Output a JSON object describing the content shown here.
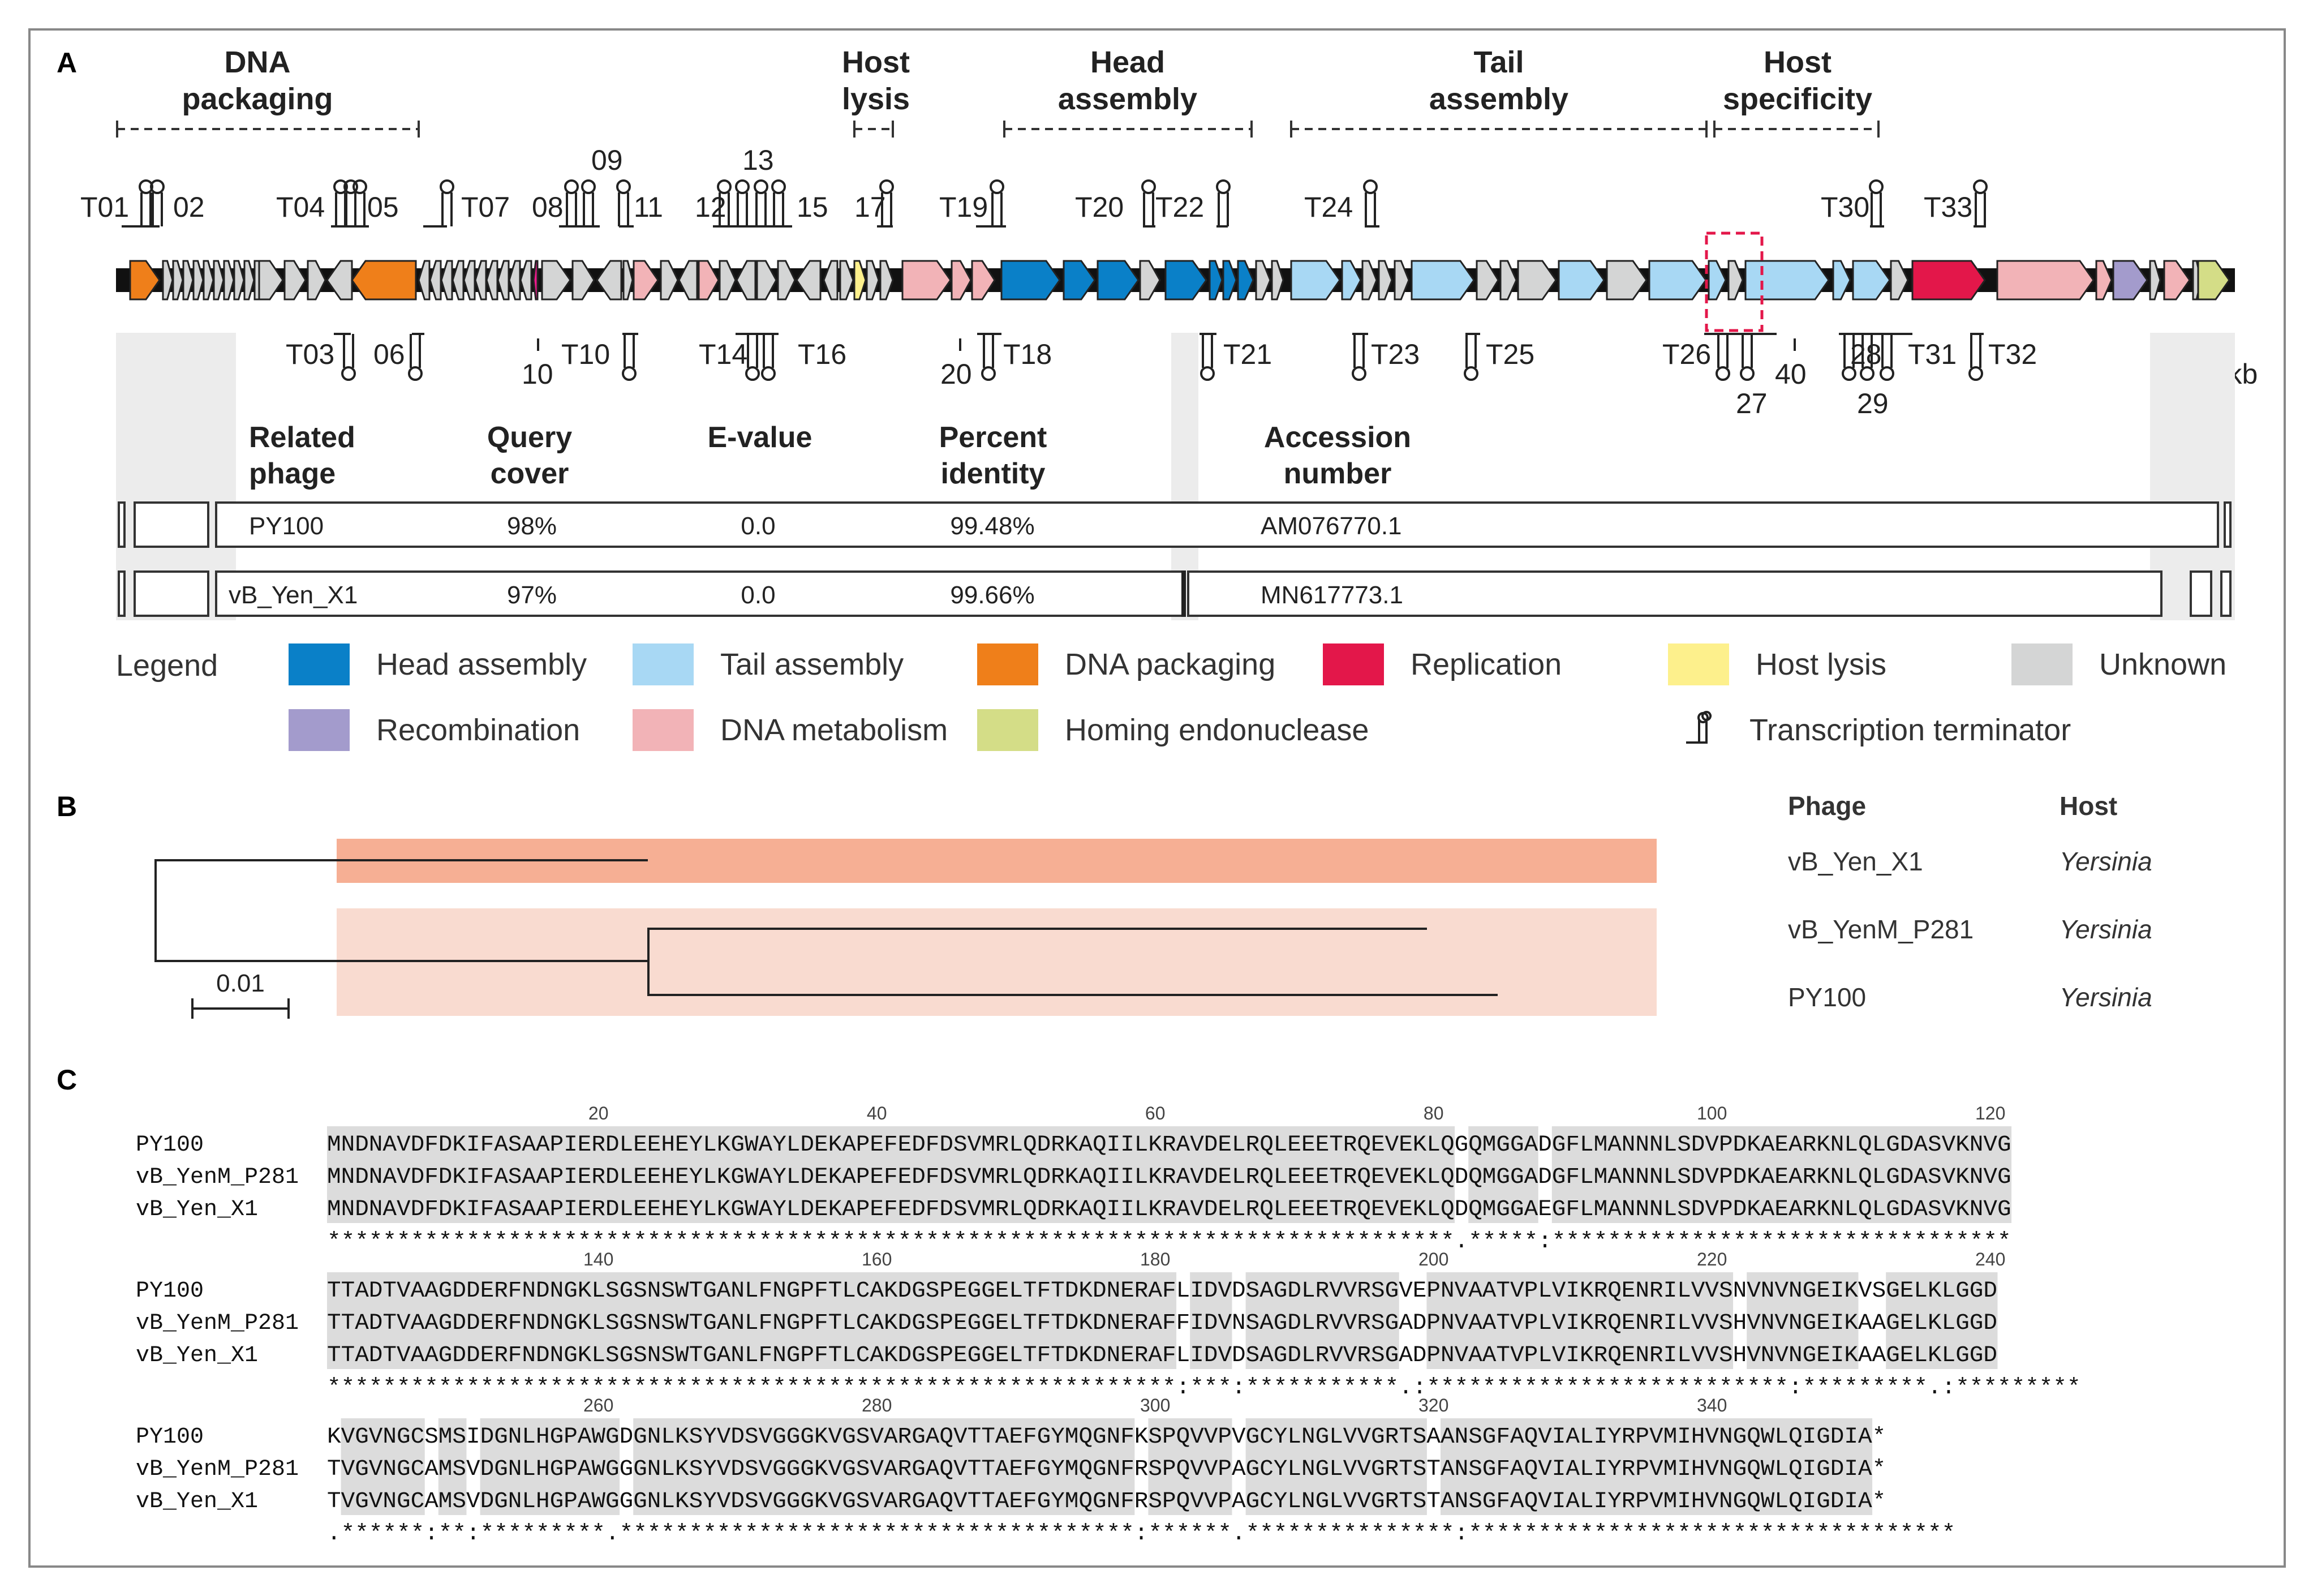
{
  "panels": {
    "a": "A",
    "b": "B",
    "c": "C"
  },
  "panel_a": {
    "modules": [
      {
        "line1": "DNA",
        "line2": "packaging"
      },
      {
        "line1": "Host",
        "line2": "lysis"
      },
      {
        "line1": "Head",
        "line2": "assembly"
      },
      {
        "line1": "Tail",
        "line2": "assembly"
      },
      {
        "line1": "Host",
        "line2": "specificity"
      }
    ],
    "terminators_top": [
      "T01",
      "02",
      "T04",
      "05",
      "T07",
      "08",
      "09",
      "11",
      "12",
      "13",
      "15",
      "17",
      "T19",
      "T20",
      "T22",
      "T24",
      "T30",
      "T33"
    ],
    "terminators_bottom": [
      "T03",
      "06",
      "T10",
      "T14",
      "T16",
      "T18",
      "T21",
      "T23",
      "T25",
      "T26",
      "27",
      "28",
      "29",
      "T31",
      "T32"
    ],
    "position_marks": [
      "10",
      "20",
      "40"
    ],
    "scale_label": "50 kb",
    "table_headers": [
      {
        "line1": "Related",
        "line2": "phage"
      },
      {
        "line1": "Query",
        "line2": "cover"
      },
      {
        "line1": "E-value",
        "line2": ""
      },
      {
        "line1": "Percent",
        "line2": "identity"
      },
      {
        "line1": "Accession",
        "line2": "number"
      }
    ],
    "rows": [
      {
        "phage": "PY100",
        "query_cover": "98%",
        "evalue": "0.0",
        "identity": "99.48%",
        "accession": "AM076770.1"
      },
      {
        "phage": "vB_Yen_X1",
        "query_cover": "97%",
        "evalue": "0.0",
        "identity": "99.66%",
        "accession": "MN617773.1"
      }
    ],
    "legend_title": "Legend",
    "legend": [
      {
        "label": "Head assembly",
        "color": "#0a80c8"
      },
      {
        "label": "Tail assembly",
        "color": "#a8d8f4"
      },
      {
        "label": "DNA packaging",
        "color": "#ef7f1a"
      },
      {
        "label": "Replication",
        "color": "#e3174a"
      },
      {
        "label": "Host lysis",
        "color": "#fdf08c"
      },
      {
        "label": "Unknown",
        "color": "#d4d5d5"
      },
      {
        "label": "Recombination",
        "color": "#a39bcc"
      },
      {
        "label": "DNA metabolism",
        "color": "#f2b3b7"
      },
      {
        "label": "Homing endonuclease",
        "color": "#d4dd87"
      }
    ],
    "terminator_legend": "Transcription terminator"
  },
  "panel_b": {
    "col_phage": "Phage",
    "col_host": "Host",
    "rows": [
      {
        "phage": "vB_Yen_X1",
        "host": "Yersinia"
      },
      {
        "phage": "vB_YenM_P281",
        "host": "Yersinia"
      },
      {
        "phage": "PY100",
        "host": "Yersinia"
      }
    ],
    "scale_bar": "0.01",
    "clade_colors": [
      "#f6af94",
      "#f9dbd0"
    ]
  },
  "panel_c": {
    "blocks": [
      {
        "ruler": [
          "20",
          "40",
          "60",
          "80",
          "100",
          "120"
        ],
        "seqs": [
          {
            "name": "PY100",
            "seq": "MNDNAVDFDKIFASAAPIERDLEEHEYLKGWAYLDEKAPEFEDFDSVMRLQDRKAQIILKRAVDELRQLEEETRQEVEKLQGQMGGADGFLMANNNLSDVPDKAEARKNLQLGDASVKNVG"
          },
          {
            "name": "vB_YenM_P281",
            "seq": "MNDNAVDFDKIFASAAPIERDLEEHEYLKGWAYLDEKAPEFEDFDSVMRLQDRKAQIILKRAVDELRQLEEETRQEVEKLQDQMGGADGFLMANNNLSDVPDKAEARKNLQLGDASVKNVG"
          },
          {
            "name": "vB_Yen_X1",
            "seq": "MNDNAVDFDKIFASAAPIERDLEEHEYLKGWAYLDEKAPEFEDFDSVMRLQDRKAQIILKRAVDELRQLEEETRQEVEKLQDQMGGAEGFLMANNNLSDVPDKAEARKNLQLGDASVKNVG"
          }
        ],
        "consensus": "*********************************************************************************.*****:*********************************"
      },
      {
        "ruler": [
          "140",
          "160",
          "180",
          "200",
          "220",
          "240"
        ],
        "seqs": [
          {
            "name": "PY100",
            "seq": "TTADTVAAGDDERFNDNGKLSGSNSWTGANLFNGPFTLCAKDGSPEGGELTFTDKDNERAFLIDVDSAGDLRVVRSGVEPNVAATVPLVIKRQENRILVVSNVNVNGEIKVSGELKLGGD"
          },
          {
            "name": "vB_YenM_P281",
            "seq": "TTADTVAAGDDERFNDNGKLSGSNSWTGANLFNGPFTLCAKDGSPEGGELTFTDKDNERAFFIDVNSAGDLRVVRSGADPNVAATVPLVIKRQENRILVVSHVNVNGEIKAAGELKLGGD"
          },
          {
            "name": "vB_Yen_X1",
            "seq": "TTADTVAAGDDERFNDNGKLSGSNSWTGANLFNGPFTLCAKDGSPEGGELTFTDKDNERAFLIDVDSAGDLRVVRSGADPNVAATVPLVIKRQENRILVVSHVNVNGEIKAAGELKLGGD"
          }
        ],
        "consensus": "*************************************************************:***:***********.:**************************:*********.:*********"
      },
      {
        "ruler": [
          "260",
          "280",
          "300",
          "320",
          "340"
        ],
        "seqs": [
          {
            "name": "PY100",
            "seq": "KVGVNGCSMSIDGNLHGPAWGDGNLKSYVDSVGGGKVGSVARGAQVTTAEFGYMQGNFKSPQVVPVGCYLNGLVVGRTSAANSGFAQVIALIYRPVMIHVNGQWLQIGDIA*"
          },
          {
            "name": "vB_YenM_P281",
            "seq": "TVGVNGCAMSVDGNLHGPAWGGGNLKSYVDSVGGGKVGSVARGAQVTTAEFGYMQGNFRSPQVVPAGCYLNGLVVGRTSTANSGFAQVIALIYRPVMIHVNGQWLQIGDIA*"
          },
          {
            "name": "vB_Yen_X1",
            "seq": "TVGVNGCAMSVDGNLHGPAWGGGNLKSYVDSVGGGKVGSVARGAQVTTAEFGYMQGNFRSPQVVPAGCYLNGLVVGRTSTANSGFAQVIALIYRPVMIHVNGQWLQIGDIA*"
          }
        ],
        "consensus": ".******:**:*********.*************************************:******.***************:***********************************"
      }
    ]
  }
}
